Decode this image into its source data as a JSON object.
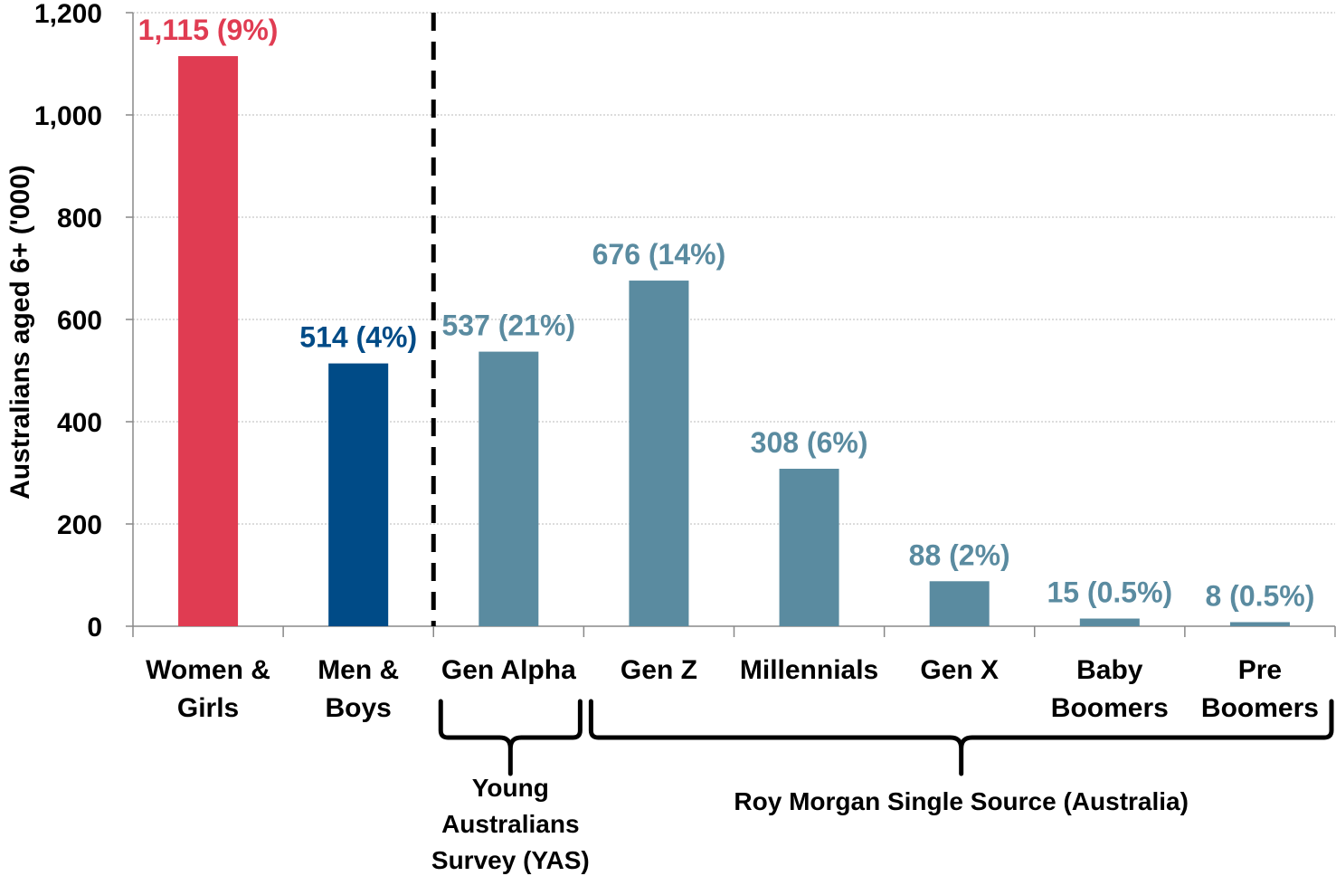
{
  "chart_data": {
    "type": "bar",
    "ylabel": "Australians aged 6+ ('000)",
    "ylim": [
      0,
      1200
    ],
    "yticks": [
      0,
      200,
      400,
      600,
      800,
      1000,
      1200
    ],
    "ytick_labels": [
      "0",
      "200",
      "400",
      "600",
      "800",
      "1,000",
      "1,200"
    ],
    "grid": true,
    "categories": [
      [
        "Women &",
        "Girls"
      ],
      [
        "Men &",
        "Boys"
      ],
      [
        "Gen Alpha"
      ],
      [
        "Gen Z"
      ],
      [
        "Millennials"
      ],
      [
        "Gen X"
      ],
      [
        "Baby",
        "Boomers"
      ],
      [
        "Pre",
        "Boomers"
      ]
    ],
    "values": [
      1115,
      514,
      537,
      676,
      308,
      88,
      15,
      8
    ],
    "data_labels": [
      "1,115 (9%)",
      "514 (4%)",
      "537 (21%)",
      "676 (14%)",
      "308 (6%)",
      "88 (2%)",
      "15 (0.5%)",
      "8 (0.5%)"
    ],
    "colors": [
      "#E03C52",
      "#004B87",
      "#5A8BA0",
      "#5A8BA0",
      "#5A8BA0",
      "#5A8BA0",
      "#5A8BA0",
      "#5A8BA0"
    ],
    "separator_after_index": 1,
    "groups": [
      {
        "label": [
          "Young",
          "Australians",
          "Survey (YAS)"
        ],
        "from": 2,
        "to": 2
      },
      {
        "label": [
          "Roy Morgan Single Source (Australia)"
        ],
        "from": 3,
        "to": 7
      }
    ]
  }
}
